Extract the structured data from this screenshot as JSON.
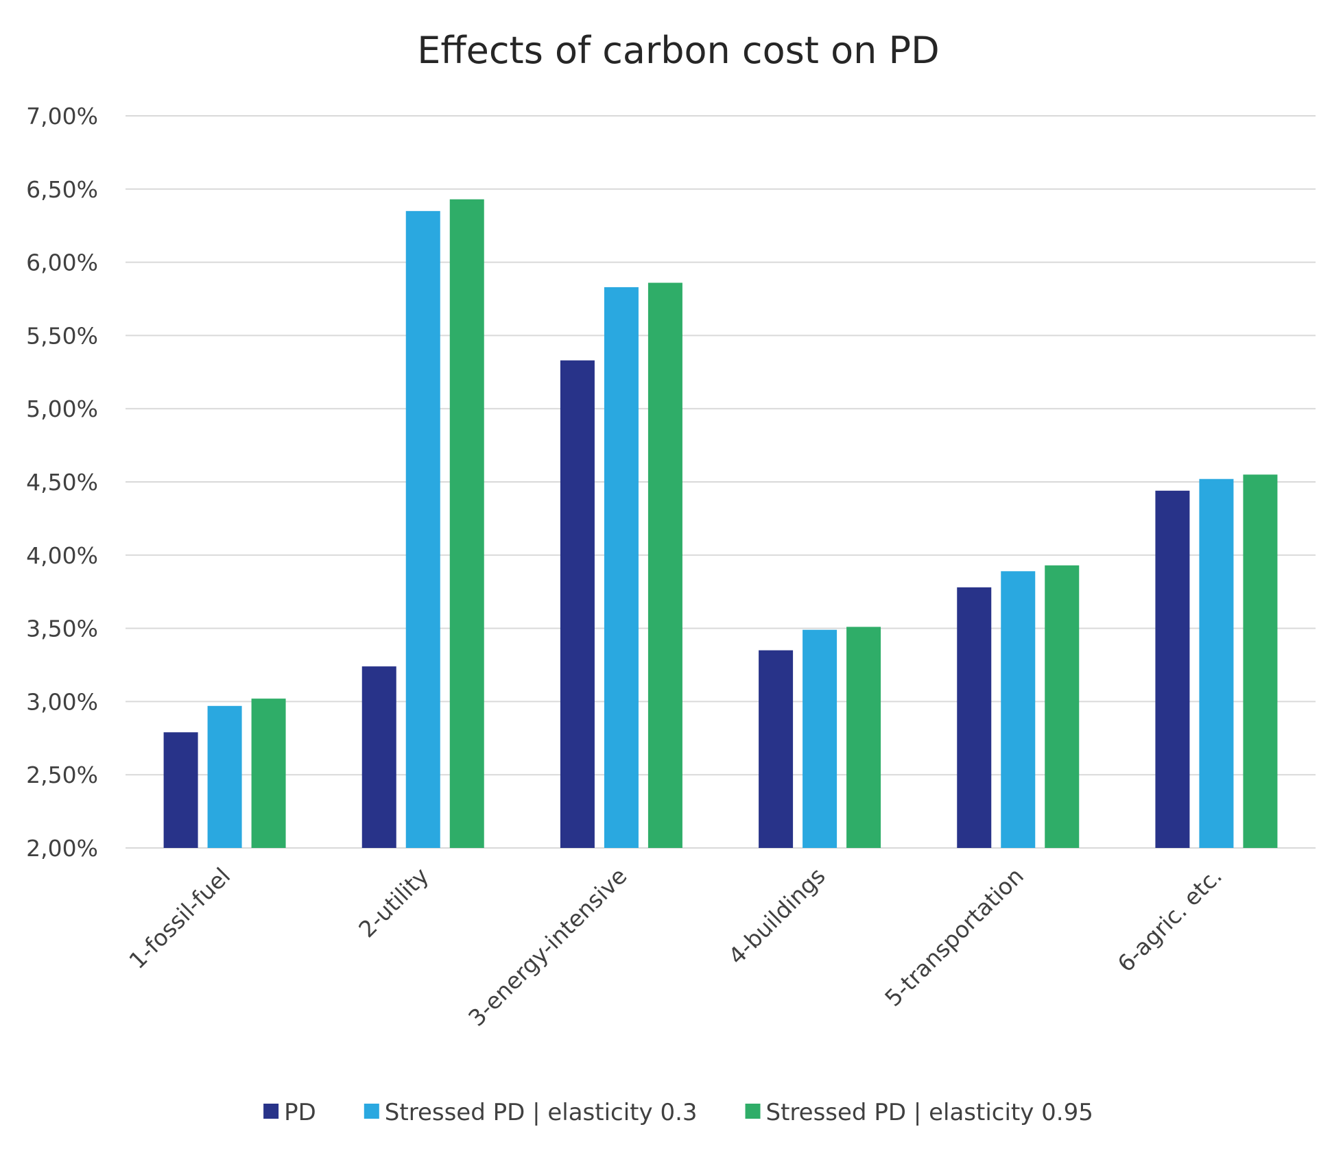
{
  "chart_data": {
    "type": "bar",
    "title": "Effects of carbon cost on PD",
    "xlabel": "",
    "ylabel": "",
    "ylim": [
      0.02,
      0.07
    ],
    "y_ticks": [
      {
        "value": 0.02,
        "label": "2,00%"
      },
      {
        "value": 0.025,
        "label": "2,50%"
      },
      {
        "value": 0.03,
        "label": "3,00%"
      },
      {
        "value": 0.035,
        "label": "3,50%"
      },
      {
        "value": 0.04,
        "label": "4,00%"
      },
      {
        "value": 0.045,
        "label": "4,50%"
      },
      {
        "value": 0.05,
        "label": "5,00%"
      },
      {
        "value": 0.055,
        "label": "5,50%"
      },
      {
        "value": 0.06,
        "label": "6,00%"
      },
      {
        "value": 0.065,
        "label": "6,50%"
      },
      {
        "value": 0.07,
        "label": "7,00%"
      }
    ],
    "categories": [
      "1-fossil-fuel",
      "2-utility",
      "3-energy-intensive",
      "4-buildings",
      "5-transportation",
      "6-agric. etc."
    ],
    "series": [
      {
        "name": "PD",
        "color": "#283389",
        "values": [
          0.0279,
          0.0324,
          0.0533,
          0.0335,
          0.0378,
          0.0444
        ]
      },
      {
        "name": "Stressed PD | elasticity 0.3",
        "color": "#2aa8e0",
        "values": [
          0.0297,
          0.0635,
          0.0583,
          0.0349,
          0.0389,
          0.0452
        ]
      },
      {
        "name": "Stressed PD | elasticity 0.95",
        "color": "#2fad68",
        "values": [
          0.0302,
          0.0643,
          0.0586,
          0.0351,
          0.0393,
          0.0455
        ]
      }
    ],
    "grid": true,
    "legend_position": "bottom"
  }
}
